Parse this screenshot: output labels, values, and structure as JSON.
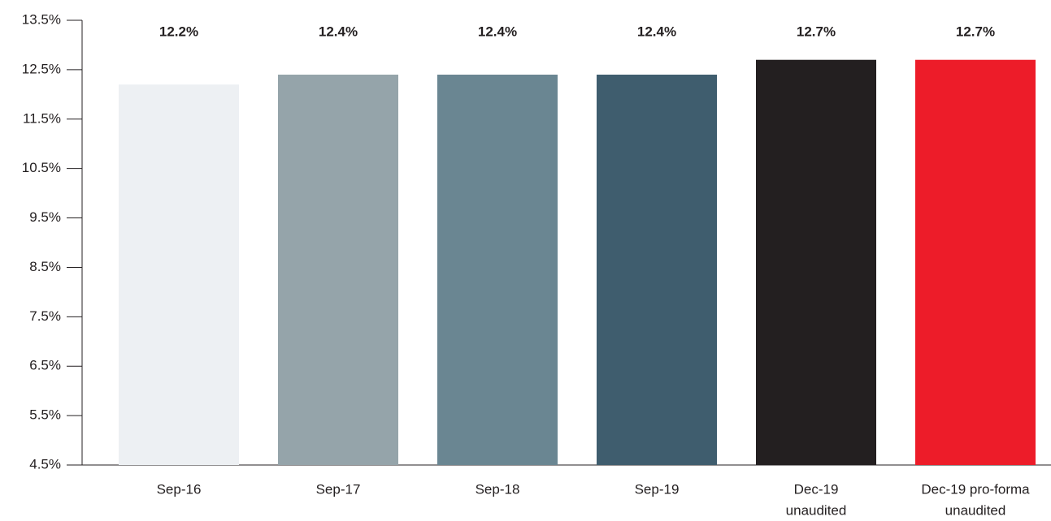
{
  "chart_data": {
    "type": "bar",
    "categories": [
      [
        "Sep-16"
      ],
      [
        "Sep-17"
      ],
      [
        "Sep-18"
      ],
      [
        "Sep-19"
      ],
      [
        "Dec-19",
        "unaudited"
      ],
      [
        "Dec-19 pro-forma",
        "unaudited"
      ]
    ],
    "values": [
      12.2,
      12.4,
      12.4,
      12.4,
      12.7,
      12.7
    ],
    "value_labels": [
      "12.2%",
      "12.4%",
      "12.4%",
      "12.4%",
      "12.7%",
      "12.7%"
    ],
    "colors": [
      "#edf0f3",
      "#95a4aa",
      "#6a8692",
      "#3f5d6e",
      "#231f20",
      "#ed1c29"
    ],
    "ylim": [
      4.5,
      13.5
    ],
    "yticks": [
      {
        "value": 4.5,
        "label": "4.5%"
      },
      {
        "value": 5.5,
        "label": "5.5%"
      },
      {
        "value": 6.5,
        "label": "6.5%"
      },
      {
        "value": 7.5,
        "label": "7.5%"
      },
      {
        "value": 8.5,
        "label": "8.5%"
      },
      {
        "value": 9.5,
        "label": "9.5%"
      },
      {
        "value": 10.5,
        "label": "10.5%"
      },
      {
        "value": 11.5,
        "label": "11.5%"
      },
      {
        "value": 12.5,
        "label": "12.5%"
      },
      {
        "value": 13.5,
        "label": "13.5%"
      }
    ],
    "grid": false
  }
}
